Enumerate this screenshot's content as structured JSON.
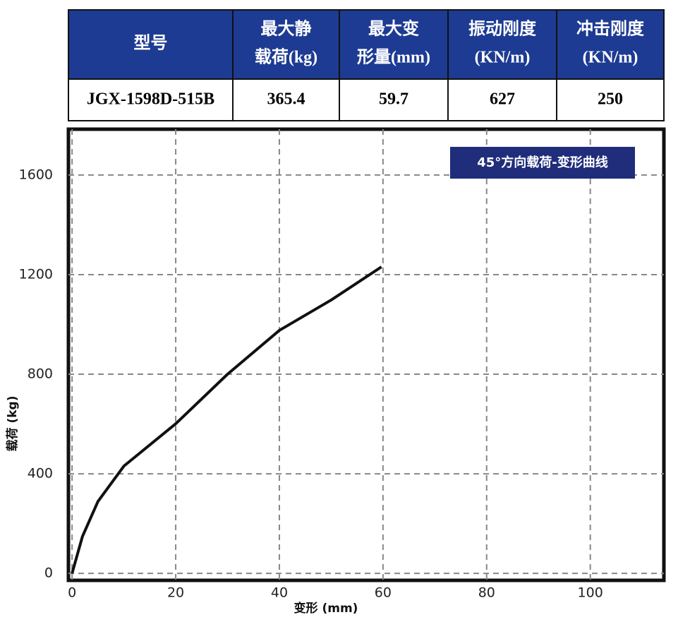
{
  "table": {
    "header": [
      [
        "型号"
      ],
      [
        "最大静",
        "载荷(kg)"
      ],
      [
        "最大变",
        "形量(mm)"
      ],
      [
        "振动刚度",
        "(KN/m)"
      ],
      [
        "冲击刚度",
        "(KN/m)"
      ]
    ],
    "rows": [
      [
        "JGX-1598D-515B",
        "365.4",
        "59.7",
        "627",
        "250"
      ]
    ]
  },
  "chart_data": {
    "type": "line",
    "title": "45°方向载荷-变形曲线",
    "x_label": "变形 (mm)",
    "y_label": "载荷 (kg)",
    "x": [
      0,
      2,
      5,
      10,
      20,
      30,
      40,
      50,
      59.7
    ],
    "series": [
      {
        "name": "载荷",
        "color": "#111111",
        "values": [
          0,
          148,
          289,
          431,
          601,
          800,
          976,
          1098,
          1231
        ]
      }
    ],
    "xlim": [
      -0.7,
      114.2
    ],
    "ylim": [
      -28,
      1784
    ],
    "xticks": [
      0,
      20,
      40,
      60,
      80,
      100
    ],
    "yticks": [
      0,
      400,
      800,
      1200,
      1600
    ],
    "grid": true
  }
}
